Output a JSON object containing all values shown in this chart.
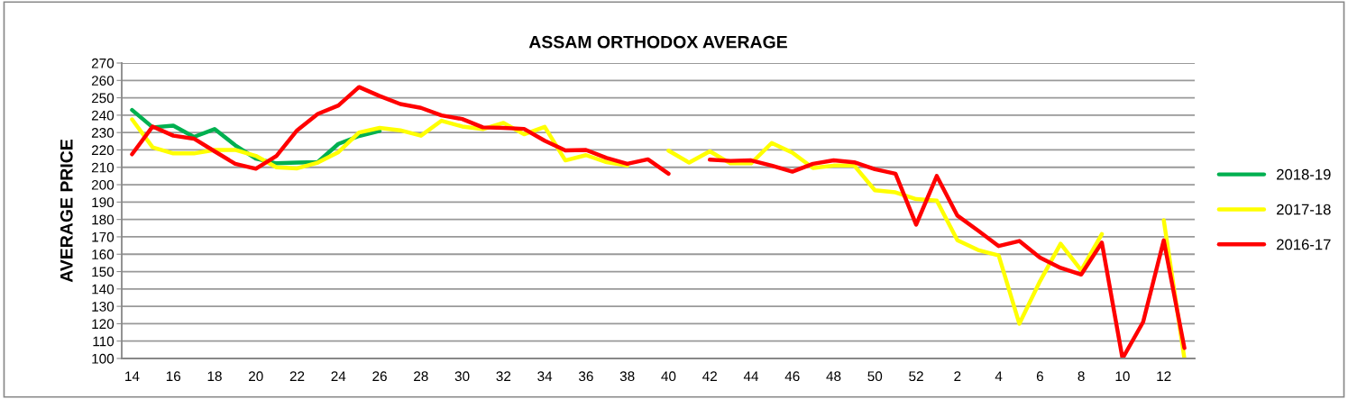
{
  "chart_data": {
    "type": "line",
    "title": "ASSAM ORTHODOX AVERAGE",
    "ylabel": "AVERAGE PRICE",
    "categories": [
      "14",
      null,
      "16",
      null,
      "18",
      null,
      "20",
      null,
      "22",
      null,
      "24",
      null,
      "26",
      null,
      "28",
      null,
      "30",
      null,
      "32",
      null,
      "34",
      null,
      "36",
      null,
      "38",
      null,
      "40",
      null,
      "42",
      null,
      "44",
      null,
      "46",
      null,
      "48",
      null,
      "50",
      null,
      "52",
      null,
      "2",
      null,
      "4",
      null,
      "6",
      null,
      "8",
      null,
      "10",
      null,
      "12",
      null
    ],
    "series": [
      {
        "name": "2018-19",
        "color": "#00b050",
        "values": [
          243,
          233,
          234,
          227.5,
          232,
          222.7,
          215,
          212.3,
          212.7,
          213,
          223.5,
          228,
          231,
          null,
          null,
          null,
          null,
          null,
          null,
          null,
          null,
          null,
          null,
          null,
          null,
          null,
          null,
          null,
          null,
          null,
          null,
          null,
          null,
          null,
          null,
          null,
          null,
          null,
          null,
          null,
          null,
          null,
          null,
          null,
          null,
          null,
          null,
          null,
          null,
          null,
          null,
          null
        ]
      },
      {
        "name": "2017-18",
        "color": "#ffff00",
        "values": [
          237.6,
          221.5,
          218,
          218,
          220,
          220,
          216.6,
          210,
          209.4,
          212.7,
          218.7,
          230,
          232.7,
          231.3,
          228.2,
          236.8,
          233.5,
          232,
          235.6,
          229,
          233.3,
          214,
          217,
          212.9,
          211,
          null,
          219.6,
          212.7,
          219.2,
          212.3,
          212.3,
          224,
          218.4,
          209.6,
          211,
          211,
          196.8,
          195.6,
          191.7,
          190.8,
          168,
          162.4,
          159.3,
          120,
          144.4,
          166,
          150.7,
          171.6,
          null,
          null,
          179.6,
          100
        ]
      },
      {
        "name": "2016-17",
        "color": "#ff0000",
        "values": [
          217.5,
          233.5,
          228.2,
          226.5,
          219.2,
          212,
          209.2,
          216.6,
          231.3,
          240.7,
          245.6,
          256.2,
          251,
          246.4,
          244.2,
          239.9,
          237.8,
          233,
          232.7,
          232.1,
          225.3,
          219.7,
          220,
          215.4,
          212,
          214.6,
          206.3,
          null,
          214.4,
          213.7,
          214,
          211,
          207.5,
          212,
          214,
          212.9,
          208.9,
          206.3,
          177,
          205,
          182.2,
          173.6,
          164.7,
          167.6,
          158.1,
          152.1,
          148.3,
          166.7,
          100,
          121,
          168,
          106
        ]
      }
    ],
    "ylim": [
      100,
      270
    ],
    "yticks": [
      100,
      110,
      120,
      130,
      140,
      150,
      160,
      170,
      180,
      190,
      200,
      210,
      220,
      230,
      240,
      250,
      260,
      270
    ],
    "grid": "y",
    "legend": "right",
    "marker": "none",
    "line_style": "solid"
  }
}
